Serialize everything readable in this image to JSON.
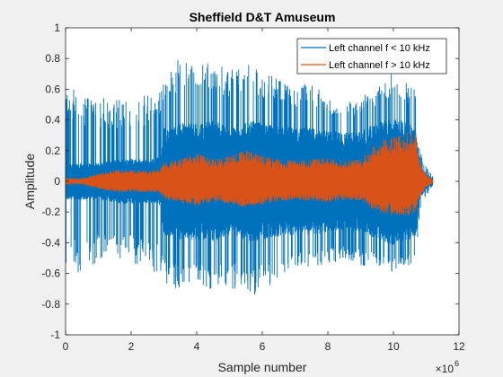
{
  "chart_data": {
    "type": "line",
    "title": "Sheffield D&T Amuseum",
    "xlabel": "Sample number",
    "ylabel": "Amplitude",
    "x_multiplier": "×10",
    "x_multiplier_exp": "6",
    "xlim": [
      0,
      12
    ],
    "ylim": [
      -1,
      1
    ],
    "xticks": [
      0,
      2,
      4,
      6,
      8,
      10,
      12
    ],
    "xtick_labels": [
      "0",
      "2",
      "4",
      "6",
      "8",
      "10",
      "12"
    ],
    "yticks": [
      -1,
      -0.8,
      -0.6,
      -0.4,
      -0.2,
      0,
      0.2,
      0.4,
      0.6,
      0.8,
      1
    ],
    "ytick_labels": [
      "-1",
      "-0.8",
      "-0.6",
      "-0.4",
      "-0.2",
      "0",
      "0.2",
      "0.4",
      "0.6",
      "0.8",
      "1"
    ],
    "grid": false,
    "legend_position": "top-right",
    "series": [
      {
        "name": "Left channel f < 10 kHz",
        "color": "#0072bd",
        "envelope": {
          "x": [
            0,
            0.5,
            1.0,
            1.5,
            2.0,
            2.5,
            2.9,
            3.0,
            3.5,
            4.0,
            4.5,
            5.0,
            5.5,
            5.8,
            6.0,
            6.5,
            7.0,
            7.5,
            8.0,
            8.5,
            9.0,
            9.5,
            10.0,
            10.5,
            10.7,
            10.8,
            11.0,
            11.2
          ],
          "upper": [
            0.6,
            0.6,
            0.55,
            0.55,
            0.55,
            0.57,
            0.6,
            0.65,
            0.82,
            0.75,
            0.8,
            0.72,
            0.78,
            0.75,
            0.7,
            0.68,
            0.6,
            0.66,
            0.55,
            0.5,
            0.55,
            0.6,
            0.72,
            0.62,
            0.6,
            0.2,
            0.1,
            0.03
          ],
          "lower": [
            -0.6,
            -0.6,
            -0.52,
            -0.5,
            -0.55,
            -0.57,
            -0.65,
            -0.67,
            -0.72,
            -0.65,
            -0.72,
            -0.7,
            -0.7,
            -0.76,
            -0.66,
            -0.7,
            -0.55,
            -0.58,
            -0.55,
            -0.5,
            -0.55,
            -0.55,
            -0.6,
            -0.55,
            -0.55,
            -0.2,
            -0.1,
            -0.03
          ],
          "body_upper": [
            0.12,
            0.12,
            0.12,
            0.14,
            0.15,
            0.14,
            0.16,
            0.35,
            0.38,
            0.38,
            0.4,
            0.35,
            0.38,
            0.4,
            0.38,
            0.36,
            0.35,
            0.35,
            0.33,
            0.32,
            0.33,
            0.38,
            0.42,
            0.38,
            0.36,
            0.12,
            0.05,
            0.02
          ],
          "body_lower": [
            -0.12,
            -0.12,
            -0.12,
            -0.14,
            -0.15,
            -0.14,
            -0.16,
            -0.35,
            -0.38,
            -0.38,
            -0.4,
            -0.35,
            -0.38,
            -0.4,
            -0.38,
            -0.36,
            -0.35,
            -0.35,
            -0.33,
            -0.32,
            -0.33,
            -0.38,
            -0.42,
            -0.38,
            -0.36,
            -0.12,
            -0.05,
            -0.02
          ]
        }
      },
      {
        "name": "Left channel f > 10 kHz",
        "color": "#d95319",
        "envelope": {
          "x": [
            0,
            0.5,
            1.0,
            1.5,
            2.0,
            2.5,
            2.9,
            3.0,
            3.5,
            4.0,
            4.5,
            5.0,
            5.5,
            6.0,
            6.5,
            7.0,
            7.5,
            8.0,
            8.5,
            9.0,
            9.3,
            9.5,
            10.0,
            10.5,
            10.7,
            10.8,
            11.0,
            11.2
          ],
          "upper": [
            0.02,
            0.02,
            0.05,
            0.07,
            0.07,
            0.07,
            0.08,
            0.12,
            0.14,
            0.18,
            0.14,
            0.16,
            0.2,
            0.16,
            0.14,
            0.13,
            0.14,
            0.15,
            0.13,
            0.14,
            0.2,
            0.26,
            0.28,
            0.32,
            0.3,
            0.12,
            0.05,
            0.01
          ],
          "lower": [
            -0.02,
            -0.02,
            -0.05,
            -0.07,
            -0.07,
            -0.07,
            -0.08,
            -0.12,
            -0.14,
            -0.16,
            -0.13,
            -0.15,
            -0.17,
            -0.15,
            -0.13,
            -0.12,
            -0.13,
            -0.14,
            -0.12,
            -0.13,
            -0.18,
            -0.2,
            -0.22,
            -0.22,
            -0.2,
            -0.1,
            -0.04,
            -0.01
          ]
        }
      }
    ]
  }
}
